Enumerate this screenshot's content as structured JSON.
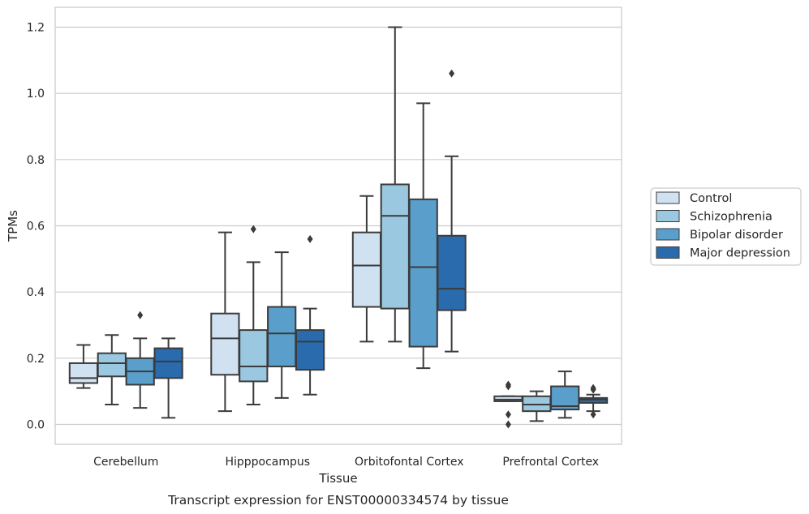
{
  "chart_data": {
    "type": "box",
    "xlabel": "Tissue",
    "ylabel": "TPMs",
    "caption": "Transcript expression for ENST00000334574 by tissue",
    "ylim": [
      -0.06,
      1.26
    ],
    "yticks": [
      "0.0",
      "0.2",
      "0.4",
      "0.6",
      "0.8",
      "1.0",
      "1.2"
    ],
    "grid": "horizontal",
    "legend_position": "right",
    "categories": [
      "Cerebellum",
      "Hipppocampus",
      "Orbitofontal Cortex",
      "Prefrontal Cortex"
    ],
    "series": [
      {
        "name": "Control",
        "color": "#d0e2f2",
        "boxes": [
          {
            "whislo": 0.11,
            "q1": 0.125,
            "med": 0.14,
            "q3": 0.185,
            "whishi": 0.24,
            "fliers": []
          },
          {
            "whislo": 0.04,
            "q1": 0.15,
            "med": 0.26,
            "q3": 0.335,
            "whishi": 0.58,
            "fliers": []
          },
          {
            "whislo": 0.25,
            "q1": 0.355,
            "med": 0.48,
            "q3": 0.58,
            "whishi": 0.69,
            "fliers": []
          },
          {
            "whislo": 0.07,
            "q1": 0.07,
            "med": 0.075,
            "q3": 0.085,
            "whishi": 0.085,
            "fliers": [
              0.0,
              0.03,
              0.115,
              0.12
            ]
          }
        ]
      },
      {
        "name": "Schizophrenia",
        "color": "#9ac8e0",
        "boxes": [
          {
            "whislo": 0.06,
            "q1": 0.145,
            "med": 0.185,
            "q3": 0.215,
            "whishi": 0.27,
            "fliers": []
          },
          {
            "whislo": 0.06,
            "q1": 0.13,
            "med": 0.175,
            "q3": 0.285,
            "whishi": 0.49,
            "fliers": [
              0.59
            ]
          },
          {
            "whislo": 0.25,
            "q1": 0.35,
            "med": 0.63,
            "q3": 0.725,
            "whishi": 1.2,
            "fliers": []
          },
          {
            "whislo": 0.01,
            "q1": 0.04,
            "med": 0.06,
            "q3": 0.085,
            "whishi": 0.1,
            "fliers": []
          }
        ]
      },
      {
        "name": "Bipolar disorder",
        "color": "#5a9fcc",
        "boxes": [
          {
            "whislo": 0.05,
            "q1": 0.12,
            "med": 0.16,
            "q3": 0.2,
            "whishi": 0.26,
            "fliers": [
              0.33
            ]
          },
          {
            "whislo": 0.08,
            "q1": 0.175,
            "med": 0.275,
            "q3": 0.355,
            "whishi": 0.52,
            "fliers": []
          },
          {
            "whislo": 0.17,
            "q1": 0.235,
            "med": 0.475,
            "q3": 0.68,
            "whishi": 0.97,
            "fliers": []
          },
          {
            "whislo": 0.02,
            "q1": 0.045,
            "med": 0.055,
            "q3": 0.115,
            "whishi": 0.16,
            "fliers": []
          }
        ]
      },
      {
        "name": "Major depression",
        "color": "#2a6bad",
        "boxes": [
          {
            "whislo": 0.02,
            "q1": 0.14,
            "med": 0.19,
            "q3": 0.23,
            "whishi": 0.26,
            "fliers": []
          },
          {
            "whislo": 0.09,
            "q1": 0.165,
            "med": 0.25,
            "q3": 0.285,
            "whishi": 0.35,
            "fliers": [
              0.56
            ]
          },
          {
            "whislo": 0.22,
            "q1": 0.345,
            "med": 0.41,
            "q3": 0.57,
            "whishi": 0.81,
            "fliers": [
              1.06
            ]
          },
          {
            "whislo": 0.04,
            "q1": 0.065,
            "med": 0.075,
            "q3": 0.08,
            "whishi": 0.09,
            "fliers": [
              0.03,
              0.105,
              0.11
            ]
          }
        ]
      }
    ]
  }
}
